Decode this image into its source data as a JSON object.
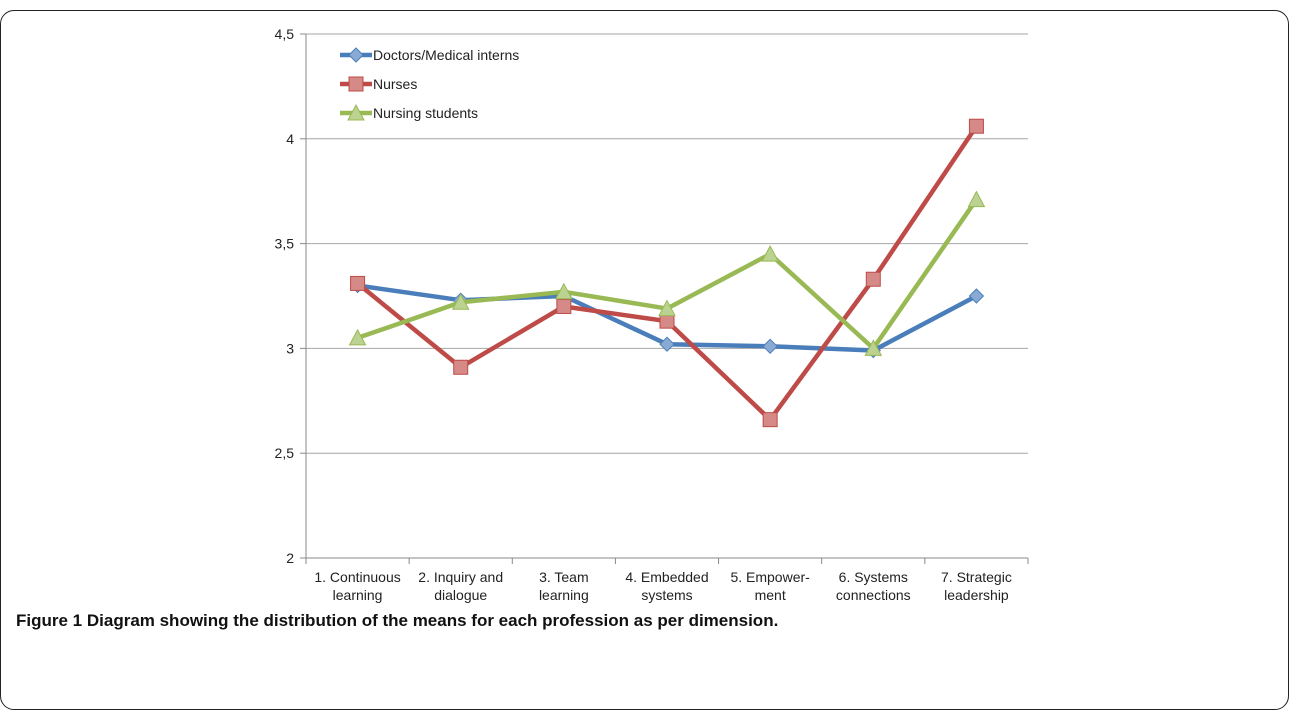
{
  "figure": {
    "caption_label": "Figure 1",
    "caption_text": "Diagram showing the distribution of the means for each profession as per dimension."
  },
  "chart_data": {
    "type": "line",
    "title": "",
    "xlabel": "",
    "ylabel": "",
    "ylim": [
      2,
      4.5
    ],
    "yticks": [
      "2",
      "2,5",
      "3",
      "3,5",
      "4",
      "4,5"
    ],
    "ytick_values": [
      2,
      2.5,
      3,
      3.5,
      4,
      4.5
    ],
    "grid": true,
    "legend_position": "top-left",
    "categories": [
      [
        "1. Continuous",
        "learning"
      ],
      [
        "2. Inquiry and",
        "dialogue"
      ],
      [
        "3. Team",
        "learning"
      ],
      [
        "4. Embedded",
        "systems"
      ],
      [
        "5. Empower-",
        "ment"
      ],
      [
        "6. Systems",
        "connections"
      ],
      [
        "7. Strategic",
        "leadership"
      ]
    ],
    "series": [
      {
        "name": "Doctors/Medical interns",
        "marker": "diamond",
        "color": "#4a7ebb",
        "values": [
          3.3,
          3.23,
          3.25,
          3.02,
          3.01,
          2.99,
          3.25
        ]
      },
      {
        "name": "Nurses",
        "marker": "square",
        "color": "#be4b48",
        "values": [
          3.31,
          2.91,
          3.2,
          3.13,
          2.66,
          3.33,
          4.06
        ]
      },
      {
        "name": "Nursing students",
        "marker": "triangle",
        "color": "#98b954",
        "values": [
          3.05,
          3.22,
          3.27,
          3.19,
          3.45,
          3.0,
          3.71
        ]
      }
    ]
  }
}
